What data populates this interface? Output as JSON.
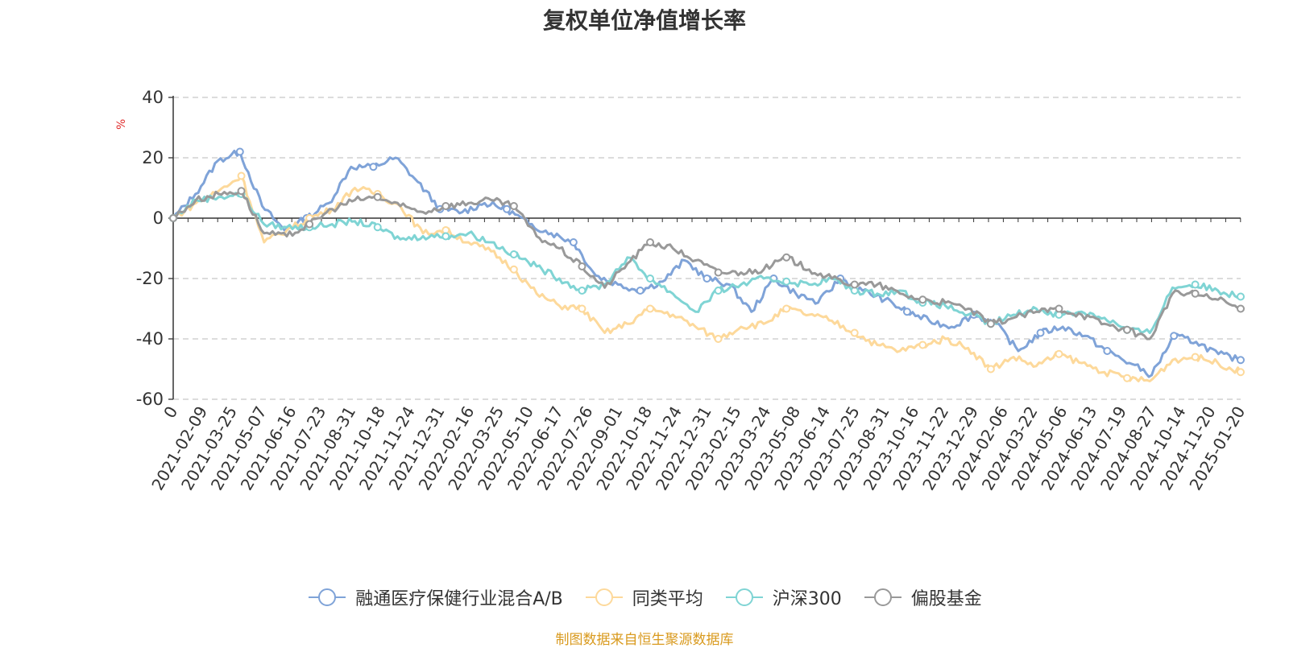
{
  "chart_data": {
    "type": "line",
    "title": "复权单位净值增长率",
    "ylabel": "%",
    "ylim": [
      -60,
      40
    ],
    "yticks": [
      40,
      20,
      0,
      -20,
      -40,
      -60
    ],
    "x_tick_labels": [
      "0",
      "2021-02-09",
      "2021-03-25",
      "2021-05-07",
      "2021-06-16",
      "2021-07-23",
      "2021-08-31",
      "2021-10-18",
      "2021-11-24",
      "2021-12-31",
      "2022-02-16",
      "2022-03-25",
      "2022-05-10",
      "2022-06-17",
      "2022-07-26",
      "2022-09-01",
      "2022-10-18",
      "2022-11-24",
      "2022-12-31",
      "2023-02-15",
      "2023-03-24",
      "2023-05-08",
      "2023-06-14",
      "2023-07-25",
      "2023-08-31",
      "2023-10-16",
      "2023-11-22",
      "2023-12-29",
      "2024-02-06",
      "2024-03-22",
      "2024-05-06",
      "2024-06-13",
      "2024-07-19",
      "2024-08-27",
      "2024-10-14",
      "2024-11-20",
      "2025-01-20"
    ],
    "grid": true,
    "legend_position": "bottom",
    "series": [
      {
        "name": "融通医疗保健行业混合A/B",
        "color": "#7fa3d8",
        "values": [
          0,
          8,
          19,
          22,
          4,
          -4,
          0,
          5,
          17,
          17,
          20,
          12,
          3,
          2,
          5,
          3,
          -2,
          -5,
          -8,
          -19,
          -22,
          -24,
          -21,
          -14,
          -20,
          -22,
          -31,
          -20,
          -25,
          -28,
          -20,
          -24,
          -27,
          -31,
          -34,
          -36,
          -32,
          -35,
          -44,
          -38,
          -36,
          -39,
          -44,
          -48,
          -52,
          -39,
          -41,
          -45,
          -47
        ]
      },
      {
        "name": "同类平均",
        "color": "#fdd99b",
        "values": [
          0,
          5,
          9,
          14,
          -8,
          -4,
          0,
          3,
          10,
          8,
          4,
          -5,
          -4,
          -8,
          -11,
          -17,
          -25,
          -29,
          -30,
          -38,
          -35,
          -30,
          -32,
          -36,
          -40,
          -36,
          -35,
          -30,
          -32,
          -34,
          -38,
          -42,
          -44,
          -42,
          -40,
          -43,
          -50,
          -46,
          -49,
          -45,
          -48,
          -51,
          -53,
          -54,
          -47,
          -46,
          -48,
          -51
        ]
      },
      {
        "name": "沪深300",
        "color": "#7fd4d4",
        "values": [
          0,
          6,
          7,
          8,
          -2,
          -3,
          -3,
          -2,
          -1,
          -3,
          -7,
          -6,
          -6,
          -5,
          -8,
          -12,
          -16,
          -20,
          -24,
          -22,
          -13,
          -20,
          -25,
          -31,
          -24,
          -22,
          -20,
          -21,
          -22,
          -20,
          -24,
          -25,
          -24,
          -28,
          -29,
          -32,
          -35,
          -32,
          -30,
          -32,
          -31,
          -33,
          -37,
          -38,
          -23,
          -22,
          -24,
          -26
        ]
      },
      {
        "name": "偏股基金",
        "color": "#999999",
        "values": [
          0,
          6,
          8,
          9,
          -5,
          -6,
          -2,
          3,
          6,
          7,
          4,
          2,
          4,
          5,
          6,
          4,
          -6,
          -10,
          -16,
          -23,
          -15,
          -8,
          -10,
          -14,
          -18,
          -18,
          -17,
          -13,
          -17,
          -20,
          -22,
          -22,
          -25,
          -27,
          -28,
          -30,
          -35,
          -33,
          -31,
          -30,
          -32,
          -35,
          -37,
          -40,
          -25,
          -25,
          -27,
          -30
        ]
      }
    ]
  },
  "source_note": "制图数据来自恒生聚源数据库"
}
